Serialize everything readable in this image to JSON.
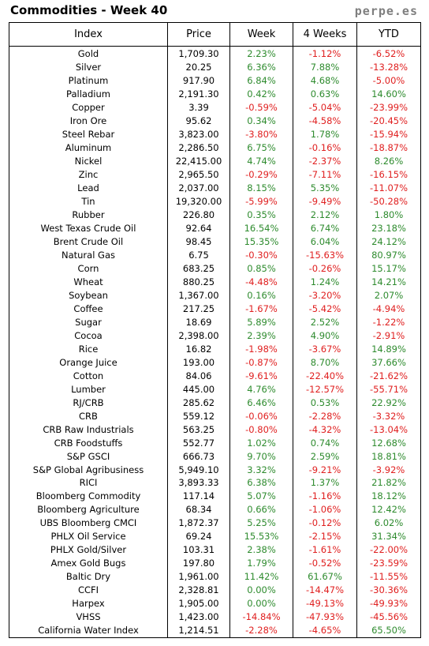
{
  "header": {
    "title": "Commodities - Week 40",
    "brand": "perpe.es"
  },
  "table": {
    "columns": [
      "Index",
      "Price",
      "Week",
      "4 Weeks",
      "YTD"
    ],
    "rows": [
      [
        "Gold",
        "1,709.30",
        "2.23%",
        "-1.12%",
        "-6.52%"
      ],
      [
        "Silver",
        "20.25",
        "6.36%",
        "7.88%",
        "-13.28%"
      ],
      [
        "Platinum",
        "917.90",
        "6.84%",
        "4.68%",
        "-5.00%"
      ],
      [
        "Palladium",
        "2,191.30",
        "0.42%",
        "0.63%",
        "14.60%"
      ],
      [
        "Copper",
        "3.39",
        "-0.59%",
        "-5.04%",
        "-23.99%"
      ],
      [
        "Iron Ore",
        "95.62",
        "0.34%",
        "-4.58%",
        "-20.45%"
      ],
      [
        "Steel Rebar",
        "3,823.00",
        "-3.80%",
        "1.78%",
        "-15.94%"
      ],
      [
        "Aluminum",
        "2,286.50",
        "6.75%",
        "-0.16%",
        "-18.87%"
      ],
      [
        "Nickel",
        "22,415.00",
        "4.74%",
        "-2.37%",
        "8.26%"
      ],
      [
        "Zinc",
        "2,965.50",
        "-0.29%",
        "-7.11%",
        "-16.15%"
      ],
      [
        "Lead",
        "2,037.00",
        "8.15%",
        "5.35%",
        "-11.07%"
      ],
      [
        "Tin",
        "19,320.00",
        "-5.99%",
        "-9.49%",
        "-50.28%"
      ],
      [
        "Rubber",
        "226.80",
        "0.35%",
        "2.12%",
        "1.80%"
      ],
      [
        "West Texas Crude Oil",
        "92.64",
        "16.54%",
        "6.74%",
        "23.18%"
      ],
      [
        "Brent Crude Oil",
        "98.45",
        "15.35%",
        "6.04%",
        "24.12%"
      ],
      [
        "Natural Gas",
        "6.75",
        "-0.30%",
        "-15.63%",
        "80.97%"
      ],
      [
        "Corn",
        "683.25",
        "0.85%",
        "-0.26%",
        "15.17%"
      ],
      [
        "Wheat",
        "880.25",
        "-4.48%",
        "1.24%",
        "14.21%"
      ],
      [
        "Soybean",
        "1,367.00",
        "0.16%",
        "-3.20%",
        "2.07%"
      ],
      [
        "Coffee",
        "217.25",
        "-1.67%",
        "-5.42%",
        "-4.94%"
      ],
      [
        "Sugar",
        "18.69",
        "5.89%",
        "2.52%",
        "-1.22%"
      ],
      [
        "Cocoa",
        "2,398.00",
        "2.39%",
        "4.90%",
        "-2.91%"
      ],
      [
        "Rice",
        "16.82",
        "-1.98%",
        "-3.67%",
        "14.89%"
      ],
      [
        "Orange Juice",
        "193.00",
        "-0.87%",
        "8.70%",
        "37.66%"
      ],
      [
        "Cotton",
        "84.06",
        "-9.61%",
        "-22.40%",
        "-21.62%"
      ],
      [
        "Lumber",
        "445.00",
        "4.76%",
        "-12.57%",
        "-55.71%"
      ],
      [
        "RJ/CRB",
        "285.62",
        "6.46%",
        "0.53%",
        "22.92%"
      ],
      [
        "CRB",
        "559.12",
        "-0.06%",
        "-2.28%",
        "-3.32%"
      ],
      [
        "CRB Raw Industrials",
        "563.25",
        "-0.80%",
        "-4.32%",
        "-13.04%"
      ],
      [
        "CRB Foodstuffs",
        "552.77",
        "1.02%",
        "0.74%",
        "12.68%"
      ],
      [
        "S&P GSCI",
        "666.73",
        "9.70%",
        "2.59%",
        "18.81%"
      ],
      [
        "S&P Global Agribusiness",
        "5,949.10",
        "3.32%",
        "-9.21%",
        "-3.92%"
      ],
      [
        "RICI",
        "3,893.33",
        "6.38%",
        "1.37%",
        "21.82%"
      ],
      [
        "Bloomberg Commodity",
        "117.14",
        "5.07%",
        "-1.16%",
        "18.12%"
      ],
      [
        "Bloomberg Agriculture",
        "68.34",
        "0.66%",
        "-1.06%",
        "12.42%"
      ],
      [
        "UBS Bloomberg CMCI",
        "1,872.37",
        "5.25%",
        "-0.12%",
        "6.02%"
      ],
      [
        "PHLX Oil Service",
        "69.24",
        "15.53%",
        "-2.15%",
        "31.34%"
      ],
      [
        "PHLX Gold/Silver",
        "103.31",
        "2.38%",
        "-1.61%",
        "-22.00%"
      ],
      [
        "Amex Gold Bugs",
        "197.80",
        "1.79%",
        "-0.52%",
        "-23.59%"
      ],
      [
        "Baltic Dry",
        "1,961.00",
        "11.42%",
        "61.67%",
        "-11.55%"
      ],
      [
        "CCFI",
        "2,328.81",
        "0.00%",
        "-14.47%",
        "-30.36%"
      ],
      [
        "Harpex",
        "1,905.00",
        "0.00%",
        "-49.13%",
        "-49.93%"
      ],
      [
        "VHSS",
        "1,423.00",
        "-14.84%",
        "-47.93%",
        "-45.56%"
      ],
      [
        "California Water Index",
        "1,214.51",
        "-2.28%",
        "-4.65%",
        "65.50%"
      ]
    ]
  },
  "colors": {
    "positive": "#2e8b2e",
    "negative": "#e02020",
    "brand": "#7f7f7f"
  }
}
